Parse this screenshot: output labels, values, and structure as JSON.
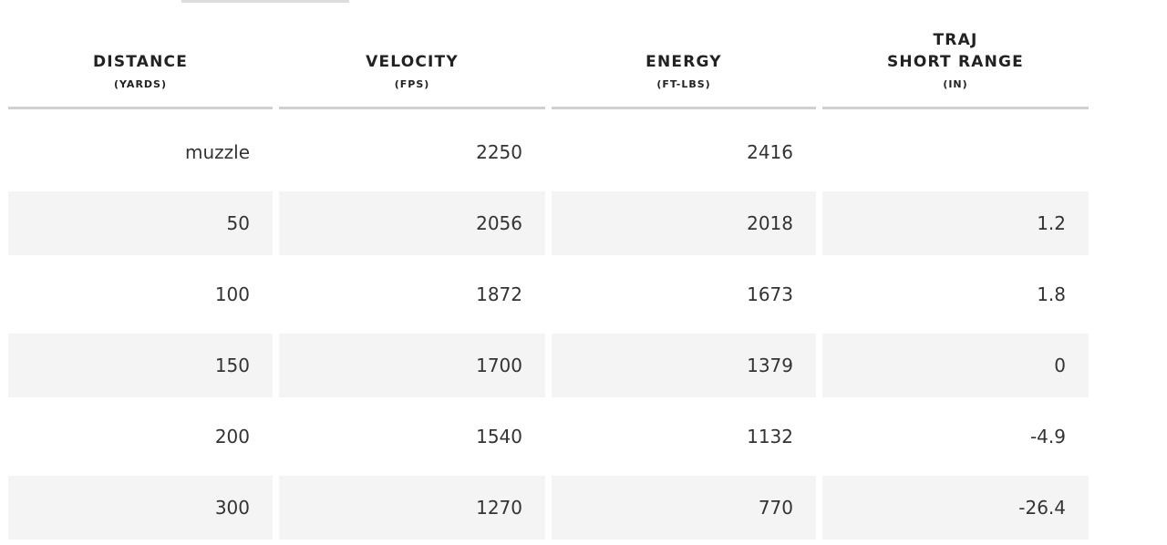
{
  "table": {
    "columns": [
      {
        "title": [
          "DISTANCE"
        ],
        "unit": "(YARDS)"
      },
      {
        "title": [
          "VELOCITY"
        ],
        "unit": "(FPS)"
      },
      {
        "title": [
          "ENERGY"
        ],
        "unit": "(FT-LBS)"
      },
      {
        "title": [
          "TRAJ",
          "SHORT RANGE"
        ],
        "unit": "(IN)"
      }
    ],
    "rows": [
      [
        "muzzle",
        "2250",
        "2416",
        null
      ],
      [
        "50",
        "2056",
        "2018",
        "1.2"
      ],
      [
        "100",
        "1872",
        "1673",
        "1.8"
      ],
      [
        "150",
        "1700",
        "1379",
        "0"
      ],
      [
        "200",
        "1540",
        "1132",
        "-4.9"
      ],
      [
        "300",
        "1270",
        "770",
        "-26.4"
      ]
    ]
  }
}
